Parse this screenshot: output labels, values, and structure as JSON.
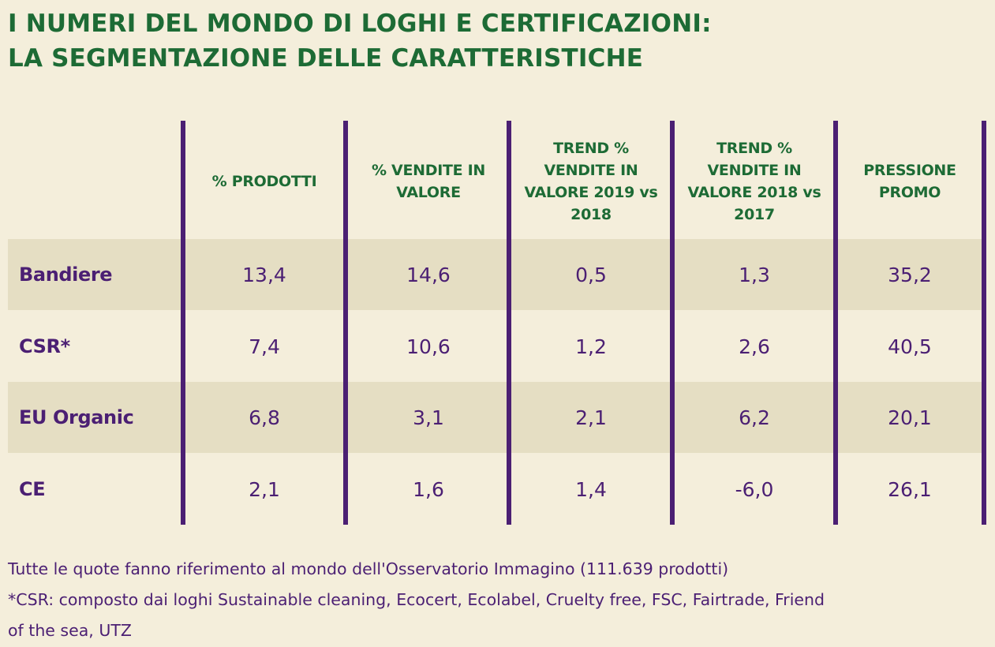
{
  "title": {
    "line1": "I NUMERI DEL MONDO DI LOGHI E CERTIFICAZIONI:",
    "line2": "LA SEGMENTAZIONE DELLE CARATTERISTICHE"
  },
  "colors": {
    "background": "#f4eedb",
    "band": "#e5dec3",
    "title_green": "#1d6b35",
    "purple": "#4b1f73"
  },
  "chart_data": {
    "type": "table",
    "columns": [
      "% PRODOTTI",
      "% VENDITE IN VALORE",
      "TREND % VENDITE IN VALORE 2019 vs 2018",
      "TREND % VENDITE IN VALORE 2018 vs 2017",
      "PRESSIONE PROMO"
    ],
    "rows": [
      {
        "label": "Bandiere",
        "values": [
          "13,4",
          "14,6",
          "0,5",
          "1,3",
          "35,2"
        ]
      },
      {
        "label": "CSR*",
        "values": [
          "7,4",
          "10,6",
          "1,2",
          "2,6",
          "40,5"
        ]
      },
      {
        "label": "EU Organic",
        "values": [
          "6,8",
          "3,1",
          "2,1",
          "6,2",
          "20,1"
        ]
      },
      {
        "label": "CE",
        "values": [
          "2,1",
          "1,6",
          "1,4",
          "-6,0",
          "26,1"
        ]
      }
    ],
    "banded_rows": [
      0,
      2
    ]
  },
  "notes": {
    "line1": "Tutte le quote fanno riferimento al mondo dell'Osservatorio Immagino (111.639 prodotti)",
    "line2": "*CSR: composto dai loghi Sustainable cleaning, Ecocert, Ecolabel, Cruelty free, FSC, Fairtrade, Friend",
    "line3": "of the sea, UTZ"
  }
}
